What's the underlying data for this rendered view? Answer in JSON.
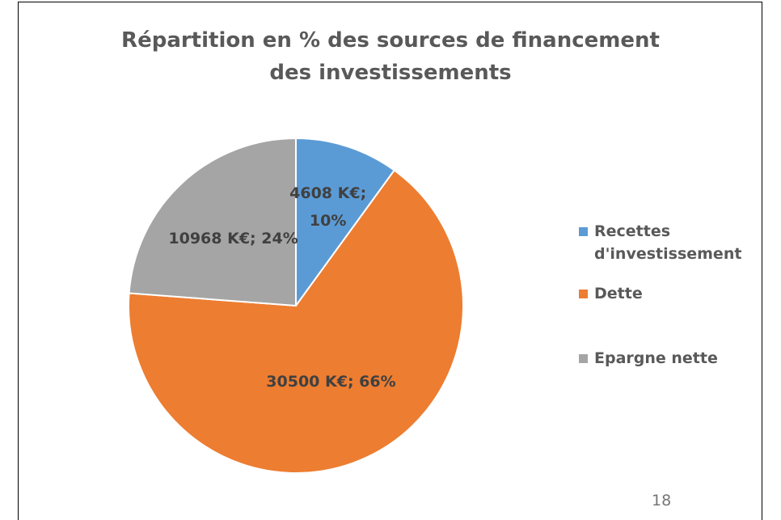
{
  "chart_data": {
    "type": "pie",
    "title": "Répartition en % des sources de financement des investissements",
    "categories": [
      "Recettes d'investissement",
      "Dette",
      "Epargne nette"
    ],
    "values": [
      4608,
      30500,
      10968
    ],
    "value_labels": [
      "4608 K€; 10%",
      "30500 K€; 66%",
      "10968 K€; 24%"
    ],
    "colors": [
      "#5B9BD5",
      "#ED7D31",
      "#A5A5A5"
    ],
    "legend": "right"
  },
  "page_number": "18"
}
